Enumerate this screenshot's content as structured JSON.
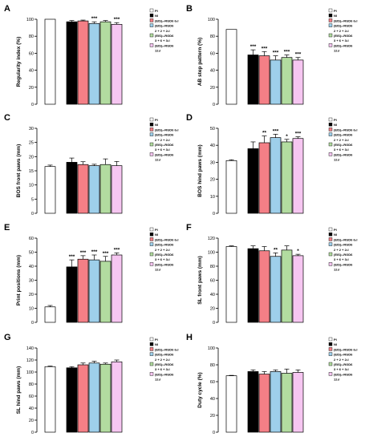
{
  "series_colors": [
    "#ffffff",
    "#000000",
    "#f47f86",
    "#9ecfea",
    "#b2dca0",
    "#f6c6f1"
  ],
  "legend": {
    "lines": [
      {
        "swatch": 0,
        "text": "PI"
      },
      {
        "swatch": 1,
        "text": "NI"
      },
      {
        "swatch": 2,
        "text": "(EIS)₂-RGD6 6₁I"
      },
      {
        "swatch": 3,
        "text": "(EIS)₂-RGD6"
      },
      {
        "swatch": null,
        "text": "2 + 2 + 2₁I"
      },
      {
        "swatch": 4,
        "text": "(EIS)₂-RGD6"
      },
      {
        "swatch": null,
        "text": "3 + 6 + 3₁I"
      },
      {
        "swatch": 5,
        "text": "(EIS)₂-RGD6"
      },
      {
        "swatch": null,
        "text": "12₁I"
      }
    ]
  },
  "chart_data": [
    {
      "panel": "A",
      "type": "bar",
      "ylabel": "Regularity index (%)",
      "ylim": [
        0,
        100
      ],
      "yticks": [
        0,
        20,
        40,
        60,
        80,
        100
      ],
      "values": [
        100,
        97,
        98,
        95,
        97,
        94
      ],
      "errors": [
        0,
        1.5,
        1,
        2,
        1.5,
        2
      ],
      "sig": [
        "",
        "",
        "",
        "***",
        "",
        "***"
      ]
    },
    {
      "panel": "B",
      "type": "bar",
      "ylabel": "AB step pattern (%)",
      "ylim": [
        0,
        100
      ],
      "yticks": [
        0,
        20,
        40,
        60,
        80,
        100
      ],
      "values": [
        88,
        58,
        57,
        52,
        55,
        52
      ],
      "errors": [
        0,
        6,
        5,
        5,
        3,
        3
      ],
      "sig": [
        "",
        "***",
        "***",
        "***",
        "***",
        "***"
      ]
    },
    {
      "panel": "C",
      "type": "bar",
      "ylabel": "BOS front paws (mm)",
      "ylim": [
        0,
        30
      ],
      "yticks": [
        0,
        5,
        10,
        15,
        20,
        25,
        30
      ],
      "values": [
        16.5,
        18,
        17.2,
        16.8,
        17.2,
        16.8
      ],
      "errors": [
        0.5,
        1.5,
        1,
        0.5,
        2,
        1.5
      ],
      "sig": [
        "",
        "",
        "",
        "",
        "",
        ""
      ]
    },
    {
      "panel": "D",
      "type": "bar",
      "ylabel": "BOS hind paws (mm)",
      "ylim": [
        0,
        50
      ],
      "yticks": [
        0,
        10,
        20,
        30,
        40,
        50
      ],
      "values": [
        31,
        38,
        41.5,
        44.5,
        42,
        44
      ],
      "errors": [
        0.5,
        4,
        4,
        2,
        1.5,
        1
      ],
      "sig": [
        "",
        "",
        "**",
        "***",
        "*",
        "***"
      ]
    },
    {
      "panel": "E",
      "type": "bar",
      "ylabel": "Print positions (mm)",
      "ylim": [
        0,
        60
      ],
      "yticks": [
        0,
        10,
        20,
        30,
        40,
        50,
        60
      ],
      "values": [
        11,
        39.5,
        45,
        44.5,
        43.5,
        48
      ],
      "errors": [
        1,
        5,
        2.5,
        3.5,
        3.5,
        1.5
      ],
      "sig": [
        "",
        "***",
        "***",
        "***",
        "***",
        "***"
      ]
    },
    {
      "panel": "F",
      "type": "bar",
      "ylabel": "SL front paws (mm)",
      "ylim": [
        0,
        120
      ],
      "yticks": [
        0,
        20,
        40,
        60,
        80,
        100,
        120
      ],
      "values": [
        108,
        105,
        102,
        94,
        103,
        95
      ],
      "errors": [
        1,
        4,
        6,
        5,
        6,
        2
      ],
      "sig": [
        "",
        "",
        "",
        "**",
        "",
        "*"
      ]
    },
    {
      "panel": "G",
      "type": "bar",
      "ylabel": "SL hind paws (mm)",
      "ylim": [
        0,
        140
      ],
      "yticks": [
        0,
        20,
        40,
        60,
        80,
        100,
        120,
        140
      ],
      "values": [
        109,
        107,
        112,
        115,
        113,
        117
      ],
      "errors": [
        1,
        2,
        3,
        3,
        2,
        3
      ],
      "sig": [
        "",
        "",
        "",
        "",
        "",
        ""
      ]
    },
    {
      "panel": "H",
      "type": "bar",
      "ylabel": "Duty cycle (%)",
      "ylim": [
        0,
        100
      ],
      "yticks": [
        0,
        20,
        40,
        60,
        80,
        100
      ],
      "values": [
        67,
        72,
        69,
        72,
        70,
        71
      ],
      "errors": [
        0.5,
        2,
        3,
        2,
        5,
        3
      ],
      "sig": [
        "",
        "",
        "",
        "",
        "",
        ""
      ]
    }
  ]
}
